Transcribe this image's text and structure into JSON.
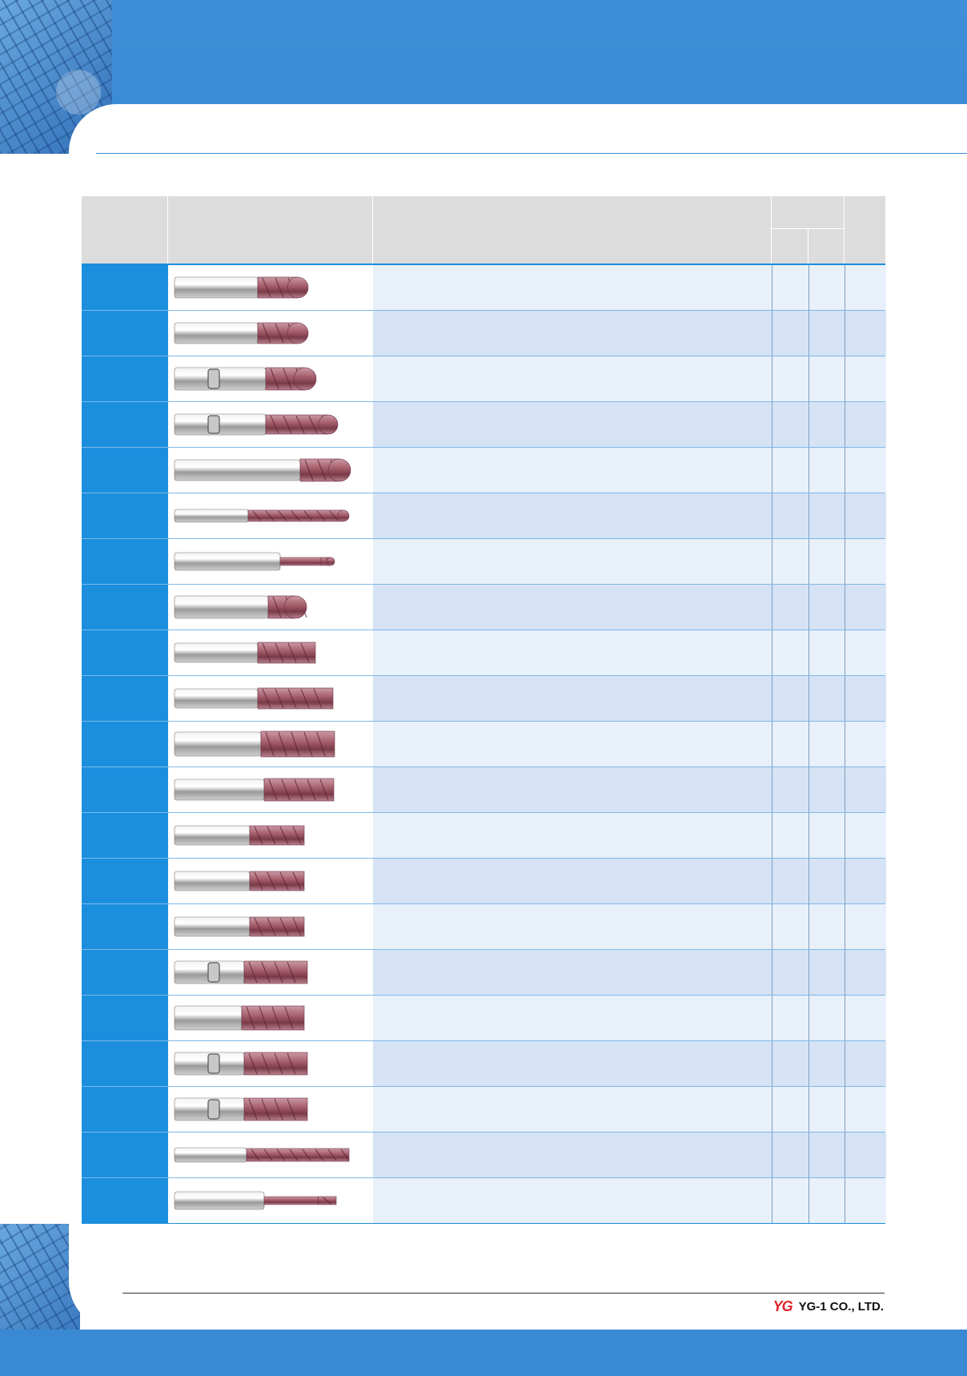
{
  "header": {
    "title": "",
    "colors": {
      "band": "#3a8ad3",
      "accent": "#1b8fde"
    }
  },
  "table": {
    "columns": [
      "",
      "",
      "",
      "",
      "",
      ""
    ],
    "rows": [
      {
        "code": "",
        "description": "",
        "c1": "",
        "c2": "",
        "c3": "",
        "tool": "ball-short"
      },
      {
        "code": "",
        "description": "",
        "c1": "",
        "c2": "",
        "c3": "",
        "tool": "ball-short"
      },
      {
        "code": "",
        "description": "",
        "c1": "",
        "c2": "",
        "c3": "",
        "tool": "ball-weldon"
      },
      {
        "code": "",
        "description": "",
        "c1": "",
        "c2": "",
        "c3": "",
        "tool": "ball-weldon-long"
      },
      {
        "code": "",
        "description": "",
        "c1": "",
        "c2": "",
        "c3": "",
        "tool": "ball-long-shank"
      },
      {
        "code": "",
        "description": "",
        "c1": "",
        "c2": "",
        "c3": "",
        "tool": "ball-long-flute"
      },
      {
        "code": "",
        "description": "",
        "c1": "",
        "c2": "",
        "c3": "",
        "tool": "ball-neck"
      },
      {
        "code": "",
        "description": "",
        "c1": "",
        "c2": "",
        "c3": "",
        "tool": "ball-stub"
      },
      {
        "code": "",
        "description": "",
        "c1": "",
        "c2": "",
        "c3": "",
        "tool": "square-2f"
      },
      {
        "code": "",
        "description": "",
        "c1": "",
        "c2": "",
        "c3": "",
        "tool": "square-3f"
      },
      {
        "code": "",
        "description": "",
        "c1": "",
        "c2": "",
        "c3": "",
        "tool": "square-4f-large"
      },
      {
        "code": "",
        "description": "",
        "c1": "",
        "c2": "",
        "c3": "",
        "tool": "square-4f"
      },
      {
        "code": "",
        "description": "",
        "c1": "",
        "c2": "",
        "c3": "",
        "tool": "square-short"
      },
      {
        "code": "",
        "description": "",
        "c1": "",
        "c2": "",
        "c3": "",
        "tool": "square-short"
      },
      {
        "code": "",
        "description": "",
        "c1": "",
        "c2": "",
        "c3": "",
        "tool": "square-short"
      },
      {
        "code": "",
        "description": "",
        "c1": "",
        "c2": "",
        "c3": "",
        "tool": "square-weldon"
      },
      {
        "code": "",
        "description": "",
        "c1": "",
        "c2": "",
        "c3": "",
        "tool": "square-large"
      },
      {
        "code": "",
        "description": "",
        "c1": "",
        "c2": "",
        "c3": "",
        "tool": "square-weldon"
      },
      {
        "code": "",
        "description": "",
        "c1": "",
        "c2": "",
        "c3": "",
        "tool": "square-weldon"
      },
      {
        "code": "",
        "description": "",
        "c1": "",
        "c2": "",
        "c3": "",
        "tool": "square-long-flute"
      },
      {
        "code": "",
        "description": "",
        "c1": "",
        "c2": "",
        "c3": "",
        "tool": "square-neck"
      }
    ]
  },
  "footer": {
    "logo_mark": "YG",
    "company": "YG-1 CO., LTD."
  }
}
